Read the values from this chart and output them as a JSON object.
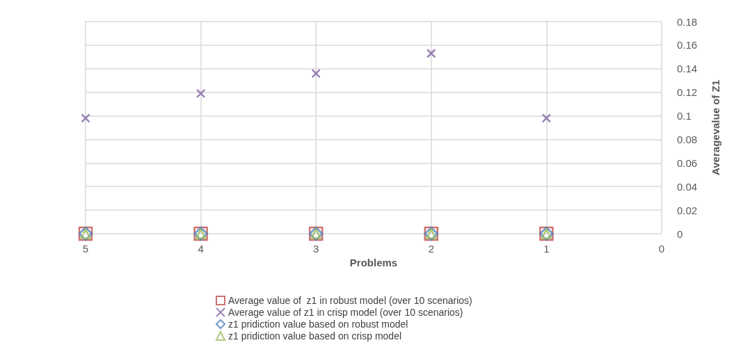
{
  "chart_data": {
    "type": "scatter",
    "xlabel": "Problems",
    "ylabel": "Averagevalue of Z1",
    "x": [
      5,
      4,
      3,
      2,
      1
    ],
    "xlim": [
      5,
      0
    ],
    "xticks": [
      5,
      4,
      3,
      2,
      1,
      0
    ],
    "ylim": [
      0,
      0.18
    ],
    "yticks": [
      0,
      0.02,
      0.04,
      0.06,
      0.08,
      0.1,
      0.12,
      0.14,
      0.16,
      0.18
    ],
    "grid": true,
    "legend": "bottom",
    "series": [
      {
        "name": "Average value of  z1 in robust model (over 10 scenarios)",
        "color": "#c0504d",
        "marker": "square",
        "values": [
          0,
          0,
          0,
          0,
          0
        ]
      },
      {
        "name": "Average value of z1 in crisp model (over 10 scenarios)",
        "color": "#8064a2",
        "marker": "cross",
        "values": [
          0.098,
          0.119,
          0.136,
          0.153,
          0.098
        ]
      },
      {
        "name": "z1 pridiction value based on robust model",
        "color": "#4f81bd",
        "marker": "diamond",
        "values": [
          0,
          0,
          0,
          0,
          0
        ]
      },
      {
        "name": "z1 pridiction value based on crisp model",
        "color": "#9bbb59",
        "marker": "triangle",
        "values": [
          0,
          0,
          0,
          0,
          0
        ]
      }
    ]
  }
}
